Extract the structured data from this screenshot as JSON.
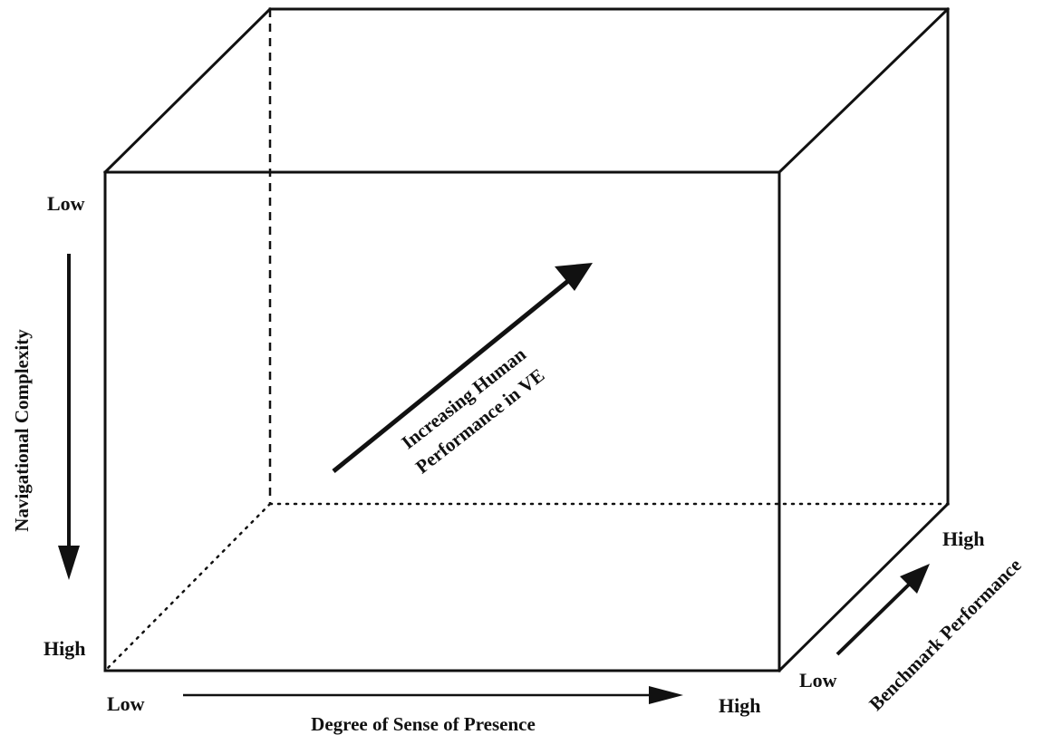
{
  "navigational_complexity": {
    "axis_label": "Navigational Complexity",
    "low_label": "Low",
    "high_label": "High"
  },
  "sense_of_presence": {
    "axis_label": "Degree of Sense of Presence",
    "low_label": "Low",
    "high_label": "High"
  },
  "benchmark_performance": {
    "axis_label": "Benchmark Performance",
    "low_label": "Low",
    "high_label": "High"
  },
  "center_note": {
    "line1": "Increasing Human",
    "line2": "Performance in VE"
  }
}
